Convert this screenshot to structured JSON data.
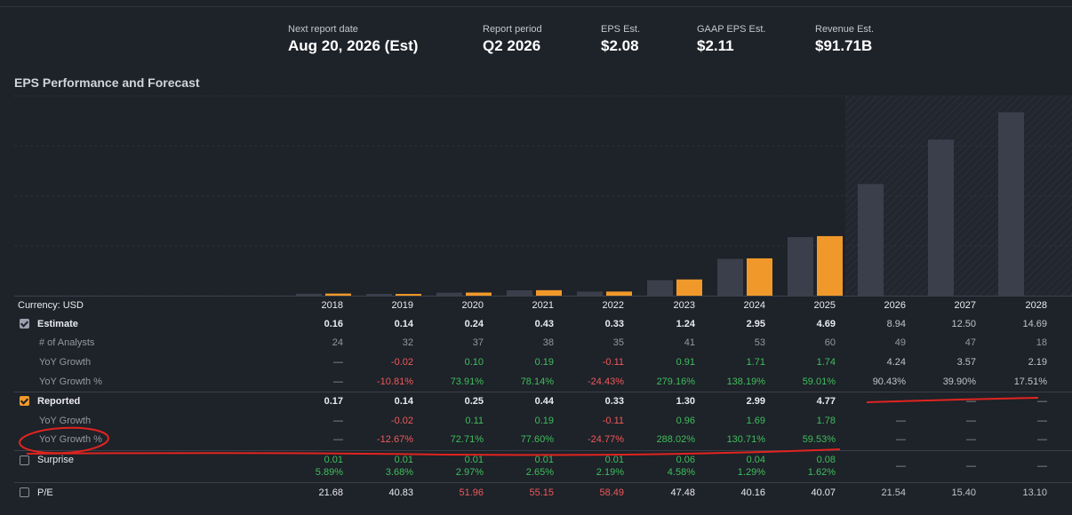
{
  "header": {
    "next_report": {
      "label": "Next report date",
      "value": "Aug 20, 2026 (Est)"
    },
    "period": {
      "label": "Report period",
      "value": "Q2 2026"
    },
    "eps": {
      "label": "EPS Est.",
      "value": "$2.08"
    },
    "gaap": {
      "label": "GAAP EPS Est.",
      "value": "$2.11"
    },
    "revenue": {
      "label": "Revenue Est.",
      "value": "$91.71B"
    }
  },
  "title": "EPS Performance and Forecast",
  "colors": {
    "estimate_bar": "#3a3f4b",
    "reported_bar": "#f0992a",
    "positive": "#3fbf5c",
    "negative": "#ef5a5a",
    "annotation": "#e0241f"
  },
  "chart_data": {
    "type": "bar",
    "categories": [
      "2018",
      "2019",
      "2020",
      "2021",
      "2022",
      "2023",
      "2024",
      "2025",
      "2026",
      "2027",
      "2028"
    ],
    "series": [
      {
        "name": "Estimate",
        "values": [
          0.16,
          0.14,
          0.24,
          0.43,
          0.33,
          1.24,
          2.95,
          4.69,
          8.94,
          12.5,
          14.69
        ]
      },
      {
        "name": "Reported",
        "values": [
          0.17,
          0.14,
          0.25,
          0.44,
          0.33,
          1.3,
          2.99,
          4.77,
          null,
          null,
          null
        ]
      }
    ],
    "forecast_start": "2026",
    "grid": true
  },
  "table": {
    "currency_label": "Currency: USD",
    "years": [
      "2018",
      "2019",
      "2020",
      "2021",
      "2022",
      "2023",
      "2024",
      "2025",
      "2026",
      "2027",
      "2028"
    ],
    "estimate": {
      "label": "Estimate",
      "values": [
        "0.16",
        "0.14",
        "0.24",
        "0.43",
        "0.33",
        "1.24",
        "2.95",
        "4.69",
        "8.94",
        "12.50",
        "14.69"
      ],
      "analysts_label": "# of Analysts",
      "analysts": [
        "24",
        "32",
        "37",
        "38",
        "35",
        "41",
        "53",
        "60",
        "49",
        "47",
        "18"
      ],
      "growth_label": "YoY Growth",
      "growth": [
        "—",
        "-0.02",
        "0.10",
        "0.19",
        "-0.11",
        "0.91",
        "1.71",
        "1.74",
        "4.24",
        "3.57",
        "2.19"
      ],
      "growth_pct_label": "YoY Growth %",
      "growth_pct": [
        "—",
        "-10.81%",
        "73.91%",
        "78.14%",
        "-24.43%",
        "279.16%",
        "138.19%",
        "59.01%",
        "90.43%",
        "39.90%",
        "17.51%"
      ]
    },
    "reported": {
      "label": "Reported",
      "values": [
        "0.17",
        "0.14",
        "0.25",
        "0.44",
        "0.33",
        "1.30",
        "2.99",
        "4.77",
        "—",
        "—",
        "—"
      ],
      "growth_label": "YoY Growth",
      "growth": [
        "—",
        "-0.02",
        "0.11",
        "0.19",
        "-0.11",
        "0.96",
        "1.69",
        "1.78",
        "—",
        "—",
        "—"
      ],
      "growth_pct_label": "YoY Growth %",
      "growth_pct": [
        "—",
        "-12.67%",
        "72.71%",
        "77.60%",
        "-24.77%",
        "288.02%",
        "130.71%",
        "59.53%",
        "—",
        "—",
        "—"
      ]
    },
    "surprise": {
      "label": "Surprise",
      "values": [
        "0.01",
        "0.01",
        "0.01",
        "0.01",
        "0.01",
        "0.06",
        "0.04",
        "0.08",
        "—",
        "—",
        "—"
      ],
      "pct": [
        "5.89%",
        "3.68%",
        "2.97%",
        "2.65%",
        "2.19%",
        "4.58%",
        "1.29%",
        "1.62%",
        "",
        "",
        ""
      ]
    },
    "pe": {
      "label": "P/E",
      "values": [
        "21.68",
        "40.83",
        "51.96",
        "55.15",
        "58.49",
        "47.48",
        "40.16",
        "40.07",
        "21.54",
        "15.40",
        "13.10"
      ],
      "colors": [
        "w",
        "w",
        "r",
        "r",
        "r",
        "w",
        "w",
        "w",
        "h",
        "h",
        "h"
      ]
    }
  }
}
